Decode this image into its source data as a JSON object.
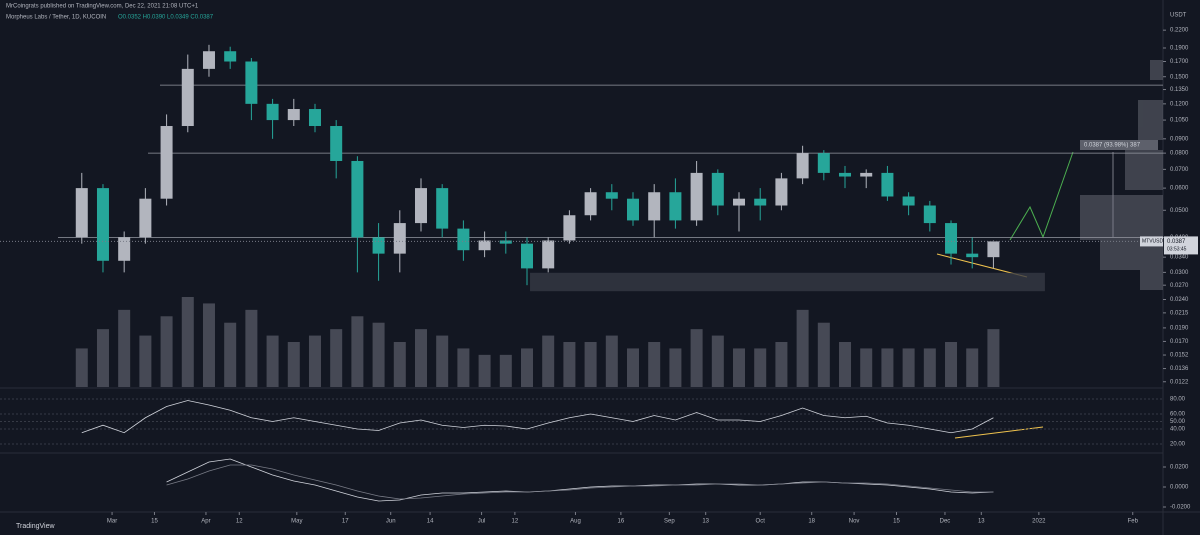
{
  "header": {
    "publisher": "MrCoingrats published on TradingView.com, Dec 22, 2021 21:08 UTC+1",
    "symbol": "Morpheus Labs / Tether, 1D, KUCOIN",
    "ohlc": "O0.0352 H0.0390 L0.0349 C0.0387"
  },
  "footer": {
    "logo": "TradingView"
  },
  "chart_data": {
    "type": "candlestick",
    "currency": "USDT",
    "log_scale": true,
    "up_color": "#b2b5be",
    "down_color": "#26a69a",
    "x": [
      "2021-02-19",
      "2021-02-26",
      "2021-03-05",
      "2021-03-12",
      "2021-03-19",
      "2021-03-26",
      "2021-04-02",
      "2021-04-09",
      "2021-04-16",
      "2021-04-23",
      "2021-04-30",
      "2021-05-07",
      "2021-05-14",
      "2021-05-21",
      "2021-05-28",
      "2021-06-04",
      "2021-06-11",
      "2021-06-18",
      "2021-06-25",
      "2021-07-02",
      "2021-07-09",
      "2021-07-16",
      "2021-07-23",
      "2021-07-30",
      "2021-08-06",
      "2021-08-13",
      "2021-08-20",
      "2021-08-27",
      "2021-09-03",
      "2021-09-10",
      "2021-09-17",
      "2021-09-24",
      "2021-10-01",
      "2021-10-08",
      "2021-10-15",
      "2021-10-22",
      "2021-10-29",
      "2021-11-05",
      "2021-11-12",
      "2021-11-19",
      "2021-11-26",
      "2021-12-03",
      "2021-12-10",
      "2021-12-17"
    ],
    "open": [
      0.04,
      0.06,
      0.033,
      0.04,
      0.055,
      0.1,
      0.16,
      0.185,
      0.17,
      0.12,
      0.105,
      0.115,
      0.1,
      0.075,
      0.04,
      0.035,
      0.045,
      0.06,
      0.043,
      0.036,
      0.039,
      0.038,
      0.031,
      0.039,
      0.048,
      0.058,
      0.055,
      0.046,
      0.058,
      0.046,
      0.068,
      0.052,
      0.055,
      0.052,
      0.065,
      0.08,
      0.068,
      0.066,
      0.068,
      0.056,
      0.052,
      0.045,
      0.035,
      0.034
    ],
    "high": [
      0.068,
      0.062,
      0.042,
      0.06,
      0.11,
      0.18,
      0.195,
      0.192,
      0.175,
      0.125,
      0.125,
      0.12,
      0.105,
      0.078,
      0.045,
      0.05,
      0.065,
      0.062,
      0.046,
      0.042,
      0.042,
      0.04,
      0.04,
      0.05,
      0.06,
      0.062,
      0.058,
      0.062,
      0.065,
      0.075,
      0.07,
      0.058,
      0.06,
      0.068,
      0.085,
      0.082,
      0.072,
      0.07,
      0.072,
      0.058,
      0.054,
      0.046,
      0.04,
      0.039
    ],
    "low": [
      0.038,
      0.03,
      0.03,
      0.038,
      0.052,
      0.095,
      0.15,
      0.16,
      0.105,
      0.09,
      0.1,
      0.095,
      0.065,
      0.03,
      0.028,
      0.03,
      0.042,
      0.04,
      0.033,
      0.034,
      0.035,
      0.027,
      0.03,
      0.038,
      0.046,
      0.05,
      0.044,
      0.04,
      0.043,
      0.044,
      0.048,
      0.042,
      0.046,
      0.05,
      0.062,
      0.064,
      0.06,
      0.06,
      0.054,
      0.048,
      0.042,
      0.032,
      0.031,
      0.031
    ],
    "close": [
      0.06,
      0.033,
      0.04,
      0.055,
      0.1,
      0.16,
      0.185,
      0.17,
      0.12,
      0.105,
      0.115,
      0.1,
      0.075,
      0.04,
      0.035,
      0.045,
      0.06,
      0.043,
      0.036,
      0.039,
      0.038,
      0.031,
      0.039,
      0.048,
      0.058,
      0.055,
      0.046,
      0.058,
      0.046,
      0.068,
      0.052,
      0.055,
      0.052,
      0.065,
      0.08,
      0.068,
      0.066,
      0.068,
      0.056,
      0.052,
      0.045,
      0.035,
      0.034,
      0.0387
    ],
    "volume": [
      30,
      45,
      60,
      40,
      55,
      70,
      65,
      50,
      60,
      40,
      35,
      40,
      45,
      55,
      50,
      35,
      45,
      40,
      30,
      25,
      25,
      30,
      40,
      35,
      35,
      40,
      30,
      35,
      30,
      45,
      40,
      30,
      30,
      35,
      60,
      50,
      35,
      30,
      30,
      30,
      30,
      35,
      30,
      45
    ],
    "volume_color": "#5d606b",
    "xlim": [
      "2021-01-23",
      "2022-02-10"
    ],
    "xticks": [
      {
        "value": "2021-03-01",
        "label": "Mar"
      },
      {
        "value": "2021-03-15",
        "label": "15"
      },
      {
        "value": "2021-04-01",
        "label": "Apr"
      },
      {
        "value": "2021-04-12",
        "label": "12"
      },
      {
        "value": "2021-05-01",
        "label": "May"
      },
      {
        "value": "2021-05-17",
        "label": "17"
      },
      {
        "value": "2021-06-01",
        "label": "Jun"
      },
      {
        "value": "2021-06-14",
        "label": "14"
      },
      {
        "value": "2021-07-01",
        "label": "Jul"
      },
      {
        "value": "2021-07-12",
        "label": "12"
      },
      {
        "value": "2021-08-01",
        "label": "Aug"
      },
      {
        "value": "2021-08-16",
        "label": "16"
      },
      {
        "value": "2021-09-01",
        "label": "Sep"
      },
      {
        "value": "2021-09-13",
        "label": "13"
      },
      {
        "value": "2021-10-01",
        "label": "Oct"
      },
      {
        "value": "2021-10-18",
        "label": "18"
      },
      {
        "value": "2021-11-01",
        "label": "Nov"
      },
      {
        "value": "2021-11-15",
        "label": "15"
      },
      {
        "value": "2021-12-01",
        "label": "Dec"
      },
      {
        "value": "2021-12-13",
        "label": "13"
      },
      {
        "value": "2022-01-01",
        "label": "2022"
      },
      {
        "value": "2022-02-01",
        "label": "Feb"
      }
    ],
    "ylim": [
      0.0114,
      0.264
    ],
    "yticks": [
      {
        "value": 0.22,
        "label": "0.2200"
      },
      {
        "value": 0.19,
        "label": "0.1900"
      },
      {
        "value": 0.17,
        "label": "0.1700"
      },
      {
        "value": 0.15,
        "label": "0.1500"
      },
      {
        "value": 0.135,
        "label": "0.1350"
      },
      {
        "value": 0.12,
        "label": "0.1200"
      },
      {
        "value": 0.105,
        "label": "0.1050"
      },
      {
        "value": 0.09,
        "label": "0.0900"
      },
      {
        "value": 0.08,
        "label": "0.0800"
      },
      {
        "value": 0.07,
        "label": "0.0700"
      },
      {
        "value": 0.06,
        "label": "0.0600"
      },
      {
        "value": 0.05,
        "label": "0.0500"
      },
      {
        "value": 0.04,
        "label": "0.0400"
      },
      {
        "value": 0.034,
        "label": "0.0340"
      },
      {
        "value": 0.03,
        "label": "0.0300"
      },
      {
        "value": 0.027,
        "label": "0.0270"
      },
      {
        "value": 0.024,
        "label": "0.0240"
      },
      {
        "value": 0.0215,
        "label": "0.0215"
      },
      {
        "value": 0.019,
        "label": "0.0190"
      },
      {
        "value": 0.017,
        "label": "0.0170"
      },
      {
        "value": 0.0152,
        "label": "0.0152"
      },
      {
        "value": 0.0136,
        "label": "0.0136"
      },
      {
        "value": 0.0122,
        "label": "0.0122"
      }
    ],
    "levels": [
      0.14,
      0.08,
      0.04
    ],
    "zone": {
      "low": 0.0257,
      "high": 0.0299,
      "start": "2021-07-17",
      "end": "2022-01-03"
    },
    "last_price": {
      "name": "MTVUSDT",
      "value": 0.0387,
      "label": "0.0387",
      "countdown": "03:53:45"
    },
    "measure_label": "0.0387 (93.98%) 387",
    "rsi": {
      "values": [
        35,
        45,
        35,
        55,
        70,
        78,
        72,
        65,
        55,
        50,
        55,
        50,
        45,
        40,
        38,
        48,
        52,
        45,
        42,
        45,
        44,
        40,
        48,
        55,
        60,
        55,
        50,
        58,
        52,
        62,
        52,
        52,
        50,
        58,
        68,
        58,
        55,
        57,
        48,
        45,
        40,
        35,
        40,
        55
      ],
      "color": "#d1d4dc",
      "ylim": [
        9.3,
        92
      ],
      "yticks": [
        {
          "value": 80,
          "label": "80.00"
        },
        {
          "value": 60,
          "label": "60.00"
        },
        {
          "value": 50,
          "label": "50.00"
        },
        {
          "value": 40,
          "label": "40.00"
        },
        {
          "value": 20,
          "label": "20.00"
        }
      ]
    },
    "macd": {
      "macd": [
        null,
        null,
        null,
        null,
        0.005,
        0.015,
        0.025,
        0.028,
        0.02,
        0.012,
        0.006,
        0.002,
        -0.004,
        -0.01,
        -0.014,
        -0.013,
        -0.008,
        -0.006,
        -0.006,
        -0.005,
        -0.004,
        -0.005,
        -0.004,
        -0.002,
        0.0,
        0.001,
        0.001,
        0.002,
        0.002,
        0.003,
        0.003,
        0.002,
        0.002,
        0.003,
        0.005,
        0.005,
        0.004,
        0.003,
        0.002,
        0.0,
        -0.002,
        -0.005,
        -0.006,
        -0.005
      ],
      "signal": [
        null,
        null,
        null,
        null,
        0.002,
        0.008,
        0.016,
        0.022,
        0.022,
        0.018,
        0.012,
        0.007,
        0.002,
        -0.004,
        -0.009,
        -0.012,
        -0.011,
        -0.009,
        -0.007,
        -0.006,
        -0.005,
        -0.005,
        -0.004,
        -0.003,
        -0.001,
        0.0,
        0.001,
        0.001,
        0.002,
        0.002,
        0.003,
        0.003,
        0.002,
        0.003,
        0.004,
        0.005,
        0.004,
        0.004,
        0.003,
        0.001,
        -0.001,
        -0.003,
        -0.005,
        -0.005
      ],
      "macd_color": "#d1d4dc",
      "signal_color": "#787b86",
      "ylim": [
        -0.025,
        0.032
      ],
      "yticks": [
        {
          "value": 0.02,
          "label": "0.0200"
        },
        {
          "value": 0,
          "label": "0.0000"
        },
        {
          "value": -0.02,
          "label": "-0.0200"
        }
      ]
    }
  }
}
